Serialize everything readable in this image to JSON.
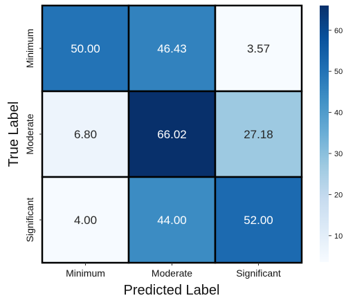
{
  "chart_data": {
    "type": "heatmap",
    "xlabel": "Predicted Label",
    "ylabel": "True Label",
    "x_categories": [
      "Minimum",
      "Moderate",
      "Significant"
    ],
    "y_categories": [
      "Minimum",
      "Moderate",
      "Significant"
    ],
    "values": [
      [
        50.0,
        46.43,
        3.57
      ],
      [
        6.8,
        66.02,
        27.18
      ],
      [
        4.0,
        44.0,
        52.0
      ]
    ],
    "value_labels": [
      [
        "50.00",
        "46.43",
        "3.57"
      ],
      [
        "6.80",
        "66.02",
        "27.18"
      ],
      [
        "4.00",
        "44.00",
        "52.00"
      ]
    ],
    "colormap": "Blues",
    "vmin": 3.57,
    "vmax": 66.02,
    "colorbar_ticks": [
      10,
      20,
      30,
      40,
      50,
      60
    ],
    "grid": false,
    "colorbar": "right"
  }
}
